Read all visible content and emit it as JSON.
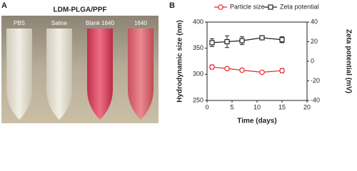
{
  "panel_labels": [
    "A",
    "B"
  ],
  "photo": {
    "title": "LDM-PLGA/PPF",
    "labels": [
      "PBS",
      "Saline",
      "Blank 1640",
      "1640"
    ]
  },
  "chart_data": {
    "type": "line",
    "xlabel": "Time (days)",
    "ylabel": "Hydrodynamic size (nm)",
    "y2label": "Zeta potential (mV)",
    "x": [
      1,
      4,
      7,
      11,
      15
    ],
    "series": [
      {
        "name": "Particle size",
        "color": "#e8262a",
        "marker": "circle",
        "axis": "y",
        "values": [
          314,
          311,
          308,
          304,
          307
        ],
        "errors": [
          4,
          3,
          1,
          1,
          4
        ]
      },
      {
        "name": "Zeta potential",
        "color": "#231f20",
        "marker": "square",
        "axis": "y2",
        "values": [
          19,
          20,
          21,
          24,
          22
        ],
        "errors": [
          4,
          6,
          4,
          1,
          3
        ]
      }
    ],
    "xlim": [
      0,
      20
    ],
    "xticks": [
      0,
      5,
      10,
      15,
      20
    ],
    "ylim": [
      250,
      400
    ],
    "yticks": [
      250,
      300,
      350,
      400
    ],
    "y2lim": [
      -40,
      40
    ],
    "y2ticks": [
      -40,
      -20,
      0,
      20,
      40
    ],
    "legend": "top"
  }
}
